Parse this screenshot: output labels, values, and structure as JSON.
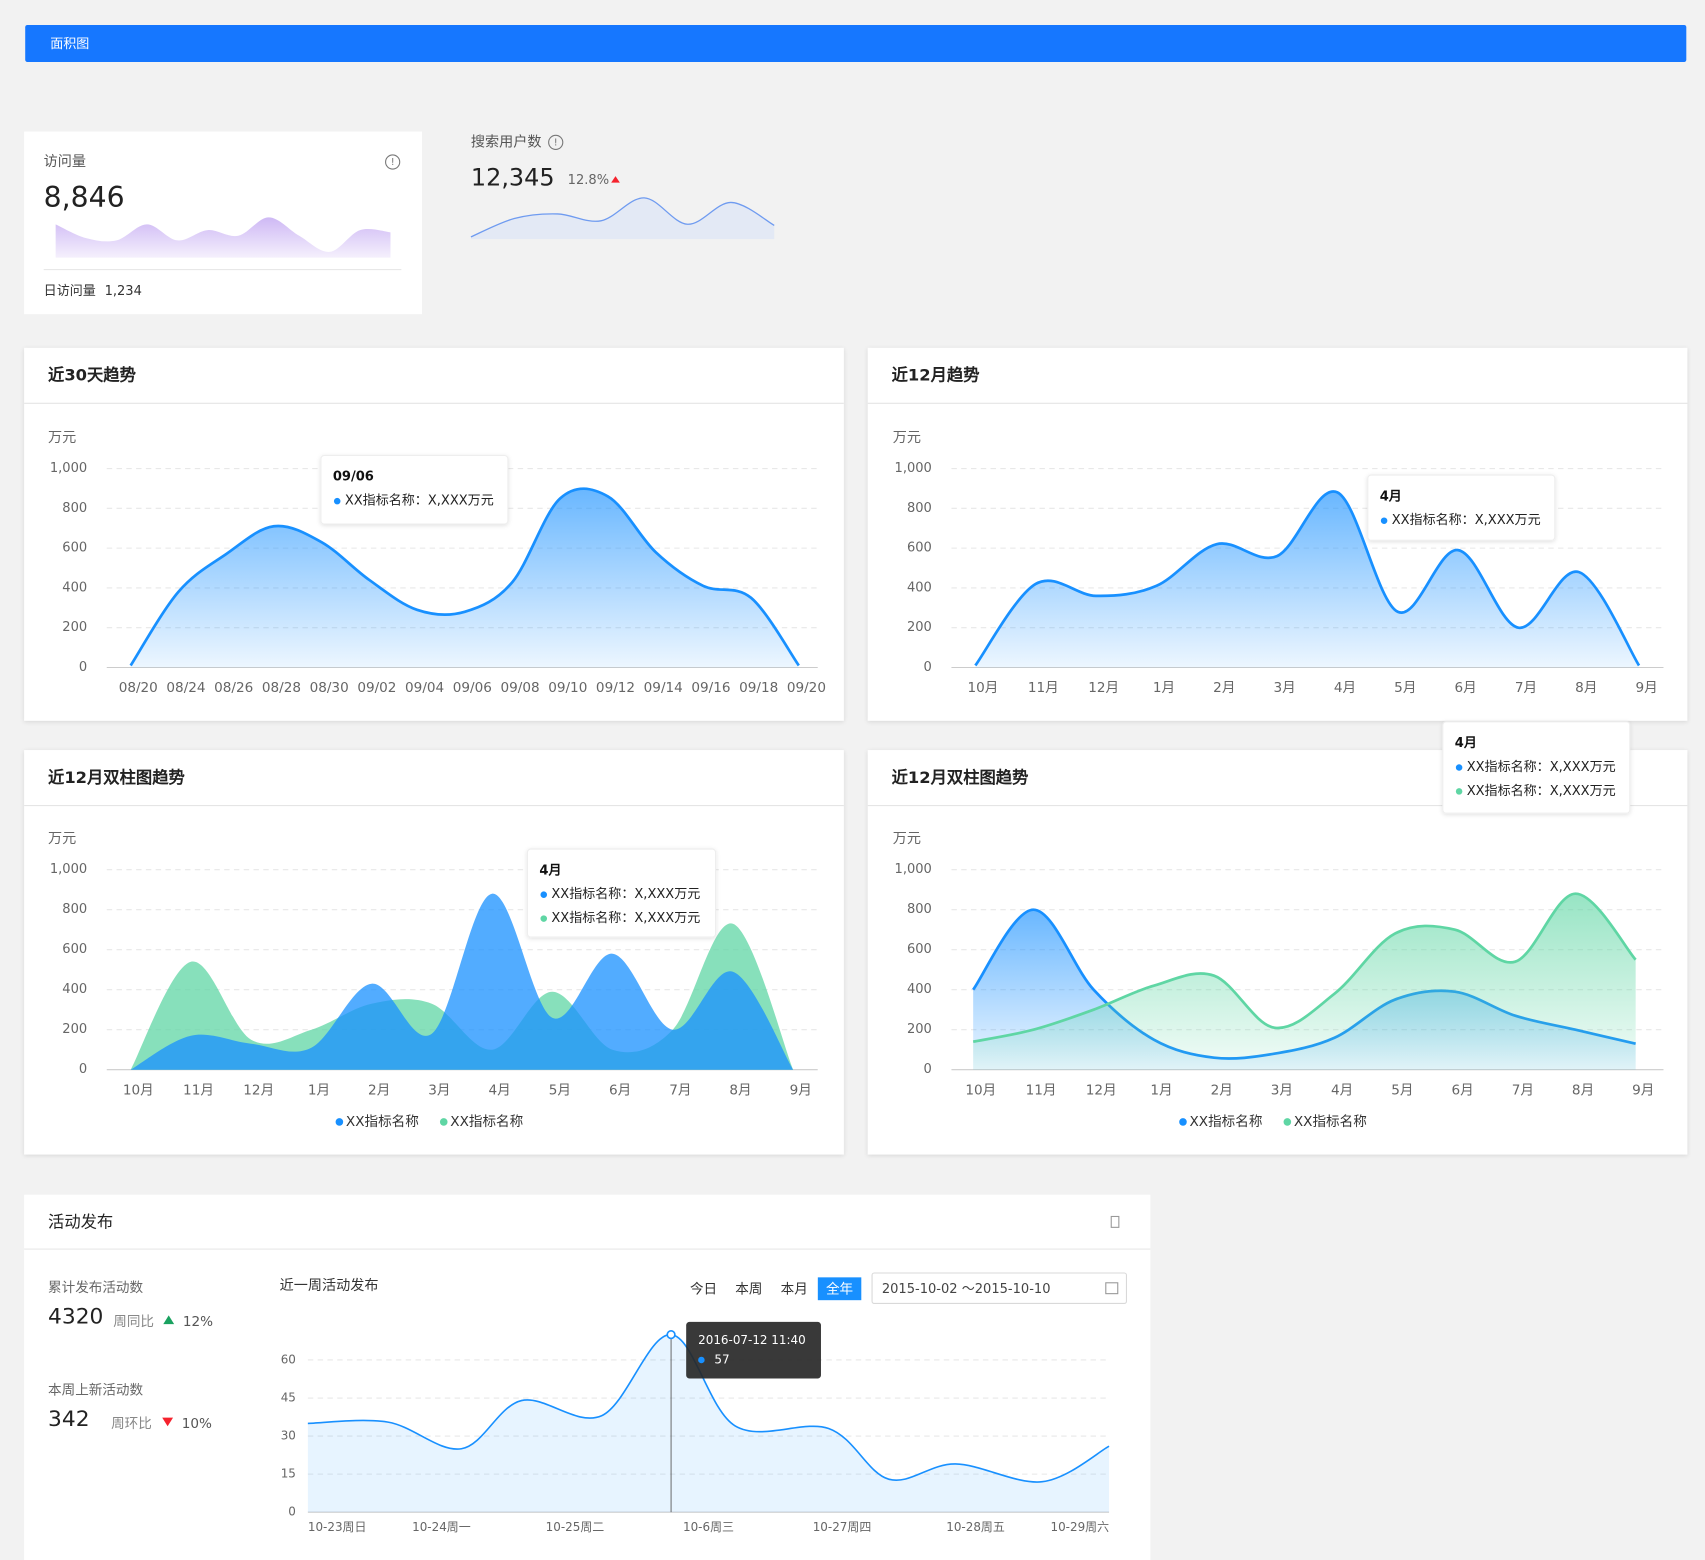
{
  "header": {
    "title": "面积图"
  },
  "stats": [
    {
      "label": "访问量",
      "value": "8,846",
      "footer_label": "日访问量",
      "footer_value": "1,234"
    },
    {
      "label": "搜索用户数",
      "value": "12,345",
      "change": "12.8%"
    }
  ],
  "chart_data": [
    {
      "type": "sparkline",
      "color": "#b99af0",
      "values": [
        29,
        17,
        15,
        29,
        15,
        24,
        19,
        35,
        19,
        5,
        24,
        22
      ]
    },
    {
      "type": "sparkline",
      "color": "#6f9bf0",
      "values": [
        2,
        18,
        22,
        16,
        36,
        13,
        32,
        12
      ]
    },
    {
      "type": "area",
      "title": "近30天趋势",
      "y_label": "万元",
      "color": "#1890ff",
      "categories": [
        "08/20",
        "08/24",
        "08/26",
        "08/28",
        "08/30",
        "09/02",
        "09/04",
        "09/06",
        "09/08",
        "09/10",
        "09/12",
        "09/14",
        "09/16",
        "09/18",
        "09/20"
      ],
      "values": [
        10,
        380,
        570,
        710,
        630,
        440,
        290,
        280,
        430,
        850,
        860,
        580,
        410,
        350,
        10
      ],
      "ylim": [
        0,
        1000
      ],
      "yticks": [
        0,
        200,
        400,
        600,
        800,
        {
          "value": 1000,
          "label": "1,000"
        }
      ],
      "grid": true,
      "tooltip": {
        "title": "09/06",
        "items": [
          "XX指标名称：X,XXX万元"
        ]
      }
    },
    {
      "type": "area",
      "title": "近12月趋势",
      "y_label": "万元",
      "color": "#1890ff",
      "categories": [
        "10月",
        "11月",
        "12月",
        "1月",
        "2月",
        "3月",
        "4月",
        "5月",
        "6月",
        "7月",
        "8月",
        "9月"
      ],
      "values": [
        10,
        420,
        360,
        410,
        620,
        560,
        880,
        280,
        590,
        200,
        480,
        10
      ],
      "ylim": [
        0,
        1000
      ],
      "yticks": [
        0,
        200,
        400,
        600,
        800,
        {
          "value": 1000,
          "label": "1,000"
        }
      ],
      "grid": true,
      "tooltip": {
        "title": "4月",
        "items": [
          "XX指标名称：X,XXX万元"
        ]
      }
    },
    {
      "type": "area",
      "title": "近12月双柱图趋势",
      "y_label": "万元",
      "categories": [
        "10月",
        "11月",
        "12月",
        "1月",
        "2月",
        "3月",
        "4月",
        "5月",
        "6月",
        "7月",
        "8月",
        "9月"
      ],
      "series": [
        {
          "name": "XX指标名称",
          "color": "#1890ff",
          "values": [
            0,
            170,
            130,
            110,
            430,
            180,
            880,
            260,
            580,
            200,
            490,
            0
          ]
        },
        {
          "name": "XX指标名称",
          "color": "#5fd6a4",
          "values": [
            0,
            540,
            150,
            200,
            330,
            330,
            100,
            390,
            100,
            200,
            730,
            0
          ]
        }
      ],
      "ylim": [
        0,
        1000
      ],
      "yticks": [
        0,
        200,
        400,
        600,
        800,
        {
          "value": 1000,
          "label": "1,000"
        }
      ],
      "grid": true,
      "tooltip": {
        "title": "4月",
        "items": [
          "XX指标名称：X,XXX万元",
          "XX指标名称：X,XXX万元"
        ]
      }
    },
    {
      "type": "area",
      "title": "近12月双柱图趋势",
      "y_label": "万元",
      "categories": [
        "10月",
        "11月",
        "12月",
        "1月",
        "2月",
        "3月",
        "4月",
        "5月",
        "6月",
        "7月",
        "8月",
        "9月"
      ],
      "series": [
        {
          "name": "XX指标名称",
          "color": "#1890ff",
          "values": [
            400,
            800,
            400,
            150,
            60,
            80,
            160,
            350,
            390,
            270,
            200,
            130
          ]
        },
        {
          "name": "XX指标名称",
          "color": "#5fd6a4",
          "values": [
            140,
            200,
            300,
            420,
            470,
            210,
            380,
            680,
            700,
            540,
            880,
            550
          ]
        }
      ],
      "ylim": [
        0,
        1000
      ],
      "yticks": [
        0,
        200,
        400,
        600,
        800,
        {
          "value": 1000,
          "label": "1,000"
        }
      ],
      "grid": true,
      "tooltip": {
        "title": "4月",
        "items": [
          "XX指标名称：X,XXX万元",
          "XX指标名称：X,XXX万元"
        ]
      }
    },
    {
      "type": "line-area",
      "title": "近一周活动发布",
      "color": "#1890ff",
      "x": [
        0,
        0.6,
        1.15,
        1.6,
        2.2,
        2.72,
        3.2,
        3.9,
        4.35,
        4.85,
        5.5,
        6
      ],
      "values": [
        35,
        35.5,
        25,
        44,
        38,
        70,
        34,
        33,
        13,
        19,
        12,
        26
      ],
      "xlim": [
        0,
        6
      ],
      "xticks": [
        {
          "value": 0,
          "label": "10-23周日"
        },
        {
          "value": 1,
          "label": "10-24周一"
        },
        {
          "value": 2,
          "label": "10-25周二"
        },
        {
          "value": 3,
          "label": "10-6周三"
        },
        {
          "value": 4,
          "label": "10-27周四"
        },
        {
          "value": 5,
          "label": "10-28周五"
        },
        {
          "value": 6,
          "label": "10-29周六"
        }
      ],
      "ylim": [
        0,
        60
      ],
      "yticks": [
        0,
        15,
        30,
        45,
        60
      ],
      "grid": true,
      "tooltip": {
        "title": "2016-07-12  11:40",
        "items": [
          "57"
        ]
      }
    }
  ],
  "activity": {
    "title": "活动发布",
    "stats": [
      {
        "label": "累计发布活动数",
        "value": 4320,
        "compare_label": "周同比",
        "change": "12%",
        "trend": "up"
      },
      {
        "label": "本周上新活动数",
        "value": 342,
        "compare_label": "周环比",
        "change": "10%",
        "trend": "down"
      }
    ],
    "filters": [
      "今日",
      "本周",
      "本月",
      "全年"
    ],
    "active_filter": 3,
    "date_range": "2015-10-02 ～2015-10-10"
  }
}
